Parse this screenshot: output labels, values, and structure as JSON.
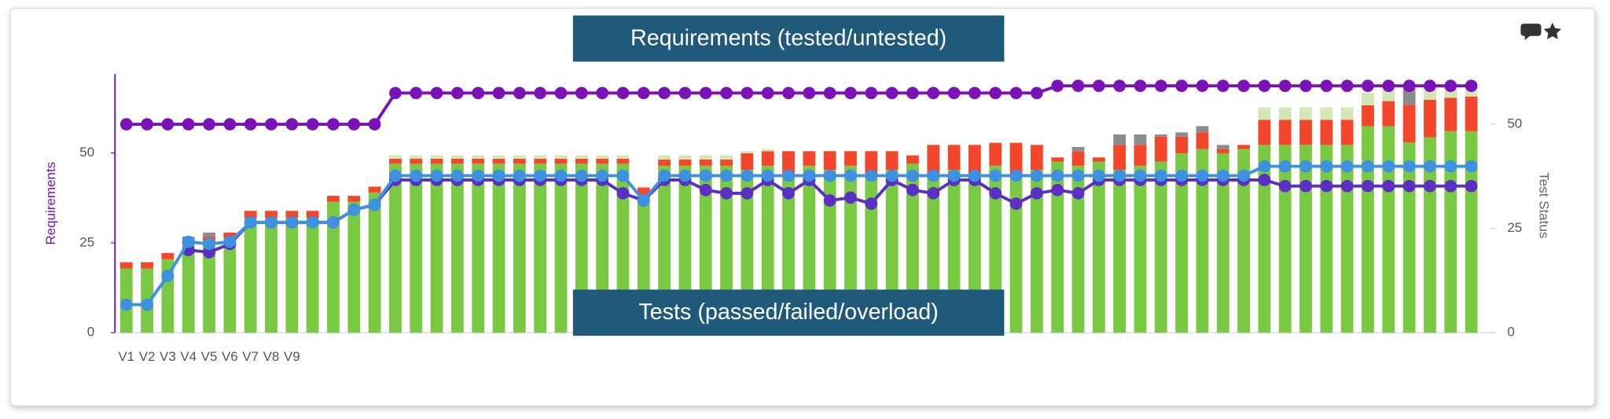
{
  "chart_data": {
    "type": "combo",
    "annotations": [
      "Requirements (tested/untested)",
      "Tests (passed/failed/overload)"
    ],
    "ylabel": "Requirements",
    "y2label": "Test Status",
    "categories": [
      "V1",
      "V2",
      "V3",
      "V4",
      "V5",
      "V6",
      "V7",
      "V8",
      "V9",
      null,
      null,
      null,
      null,
      null,
      null,
      null,
      null,
      null,
      null,
      null,
      null,
      null,
      null,
      null,
      null,
      null,
      null,
      null,
      null,
      null,
      null,
      null,
      null,
      null,
      null,
      null,
      null,
      null,
      null,
      null,
      null,
      null,
      null,
      null,
      null,
      null,
      null,
      null,
      null,
      null,
      null,
      null,
      null,
      null,
      null,
      null,
      null,
      null,
      null,
      null,
      null,
      null,
      null,
      null,
      null,
      null
    ],
    "ylim": [
      0,
      72
    ],
    "yticks": [
      0,
      25,
      50
    ],
    "y2lim": [
      0,
      62
    ],
    "y2ticks": [
      0,
      25,
      50
    ],
    "series": [
      {
        "type": "bar",
        "axis": "y2",
        "color": "#7ac943",
        "values": [
          15.4,
          15.4,
          17.6,
          21.1,
          21.8,
          22.5,
          27.5,
          27.5,
          27.5,
          27.5,
          31.4,
          31.4,
          33.6,
          40.5,
          40.5,
          40.5,
          40.5,
          40.5,
          40.5,
          40.5,
          40.5,
          40.5,
          40.5,
          40.5,
          40.5,
          33,
          40,
          40,
          40,
          40,
          39,
          40,
          38,
          40,
          39,
          40,
          38,
          39,
          40.5,
          38,
          39,
          37,
          40,
          38,
          39,
          41,
          40,
          41,
          39,
          40,
          41,
          43,
          44,
          43,
          44,
          45,
          45,
          45,
          45,
          45,
          49.5,
          49.5,
          45.6,
          46.8,
          48.3,
          48.3
        ]
      },
      {
        "type": "bar",
        "axis": "y2",
        "color": "#f4462a",
        "values": [
          1.5,
          1.5,
          1.5,
          1,
          1.2,
          1.5,
          1.7,
          1.7,
          1.7,
          1.7,
          1.4,
          1.4,
          1.4,
          1.2,
          1.2,
          1.2,
          1.2,
          1.2,
          1.2,
          1.2,
          1.2,
          1.2,
          1.2,
          1.2,
          1.2,
          1.8,
          1.5,
          1.5,
          1.5,
          1.5,
          4,
          3.5,
          5.5,
          3.5,
          4.5,
          3.5,
          5.5,
          4.5,
          2,
          7,
          6,
          8,
          5.5,
          7.5,
          6,
          1,
          3.5,
          1,
          6,
          5,
          6,
          4,
          4,
          1,
          1,
          6,
          6,
          6,
          6,
          6,
          5,
          6,
          9,
          9,
          8,
          8.3
        ]
      },
      {
        "type": "bar",
        "axis": "y2",
        "color": "#d4e6b5",
        "values": [
          0,
          0,
          0,
          0,
          0,
          0,
          0,
          0,
          0,
          0,
          0,
          0,
          0,
          0.8,
          0.8,
          0.8,
          0.8,
          0.8,
          0.8,
          0.8,
          0.8,
          0.8,
          0.8,
          0.8,
          0.8,
          0,
          1,
          1,
          1,
          1,
          0.5,
          0.5,
          0,
          0,
          0,
          0,
          0,
          0,
          0,
          0,
          0,
          0,
          0,
          0,
          0,
          0,
          0,
          0,
          0,
          0,
          0,
          0,
          0,
          0,
          0,
          3,
          3,
          3,
          3,
          3,
          3,
          3,
          0,
          3,
          2.3,
          2
        ]
      },
      {
        "type": "bar",
        "axis": "y2",
        "color": "#8c8c8c",
        "values": [
          0,
          0,
          0,
          0.9,
          1,
          0,
          0,
          0,
          0,
          0,
          0,
          0,
          0,
          0,
          0,
          0,
          0,
          0,
          0,
          0,
          0,
          0,
          0,
          0,
          0,
          0,
          0,
          0,
          0,
          0,
          0,
          0,
          0,
          0,
          0,
          0,
          0,
          0,
          0,
          0,
          0,
          0,
          0,
          0,
          0,
          0,
          1,
          0,
          2.5,
          2.5,
          0.5,
          1,
          1.5,
          1,
          0,
          0,
          0,
          0,
          0,
          0,
          0,
          0,
          4,
          0,
          0,
          0
        ]
      },
      {
        "type": "line",
        "axis": "y",
        "color": "#7a12b8",
        "values": [
          58,
          58,
          58,
          58,
          58,
          58,
          58,
          58,
          58,
          58,
          58,
          58,
          58,
          66.7,
          66.7,
          66.7,
          66.7,
          66.7,
          66.7,
          66.7,
          66.7,
          66.7,
          66.7,
          66.7,
          66.7,
          66.7,
          66.7,
          66.7,
          66.7,
          66.7,
          66.7,
          66.7,
          66.7,
          66.7,
          66.7,
          66.7,
          66.7,
          66.7,
          66.7,
          66.7,
          66.7,
          66.7,
          66.7,
          66.7,
          66.7,
          68.7,
          68.7,
          68.7,
          68.7,
          68.7,
          68.7,
          68.7,
          68.7,
          68.7,
          68.7,
          68.7,
          68.7,
          68.7,
          68.7,
          68.7,
          68.7,
          68.7,
          68.7,
          68.7,
          68.7,
          68.7
        ]
      },
      {
        "type": "line",
        "axis": "y",
        "color": "#5b2fc4",
        "values": [
          null,
          null,
          null,
          23,
          22.4,
          24.7,
          30.7,
          30.7,
          30.7,
          30.7,
          30.7,
          34.2,
          35.6,
          42.5,
          42.5,
          42.5,
          42.5,
          42.5,
          42.5,
          42.5,
          42.5,
          42.5,
          42.5,
          42.5,
          38.8,
          36.8,
          42.5,
          42.5,
          39.7,
          38.8,
          38.8,
          42.5,
          38.8,
          42.5,
          36.8,
          37.6,
          35.9,
          42.5,
          39.7,
          38.8,
          42.5,
          42.5,
          38.8,
          35.9,
          38.8,
          39.7,
          38.8,
          42.5,
          42.5,
          42.5,
          42.5,
          42.5,
          42.5,
          42.5,
          42.5,
          42.5,
          40.8,
          40.8,
          40.8,
          40.8,
          40.8,
          40.8,
          40.8,
          40.8,
          40.8,
          40.8
        ]
      },
      {
        "type": "line",
        "axis": "y",
        "color": "#3e90e0",
        "values": [
          7.8,
          7.8,
          15.8,
          25.3,
          24.7,
          25.3,
          30.7,
          30.7,
          30.7,
          30.7,
          30.7,
          34.2,
          35.6,
          43.7,
          43.7,
          43.7,
          43.7,
          43.7,
          43.7,
          43.7,
          43.7,
          43.7,
          43.7,
          43.7,
          43.7,
          36.8,
          43.7,
          43.7,
          43.7,
          43.7,
          43.7,
          43.7,
          43.7,
          43.7,
          43.7,
          43.7,
          43.7,
          43.7,
          43.7,
          43.7,
          43.7,
          43.7,
          43.7,
          43.7,
          43.7,
          43.7,
          43.7,
          43.7,
          43.7,
          43.7,
          43.7,
          43.7,
          43.7,
          43.7,
          43.7,
          46.3,
          46.3,
          46.3,
          46.3,
          46.3,
          46.3,
          46.3,
          46.3,
          46.3,
          46.3,
          46.3
        ]
      }
    ]
  }
}
